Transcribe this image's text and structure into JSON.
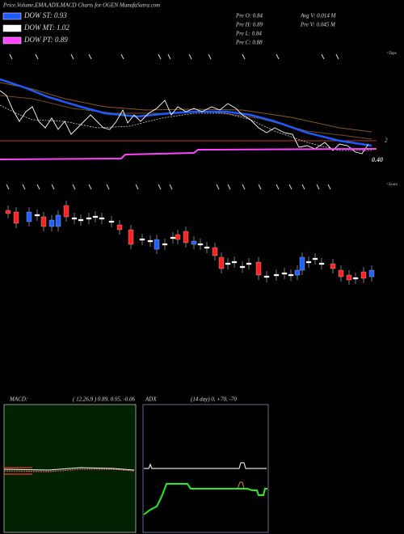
{
  "header": {
    "title": "Price,Volume,EMA,ADX,MACD Charts for OGEN MunafaSutra.com"
  },
  "legend": [
    {
      "label": "DOW ST: 0.93",
      "color": "#1e5bff"
    },
    {
      "label": "DOW MT: 1.02",
      "color": "#ffffff"
    },
    {
      "label": "DOW PT: 0.89",
      "color": "#ff44ff"
    }
  ],
  "stats": [
    "Pre  O: 0.84",
    "Pre  H: 0.89",
    "Pre  L: 0.84",
    "Pre  C: 0.88",
    "Avg V: 0.014  M",
    "Pre  V: 0.045  M"
  ],
  "labels": {
    "tops": "<Tops",
    "level": "2",
    "price": "0.40",
    "lows": "<Lows"
  },
  "macd": {
    "title": "MACD:",
    "params": "( 12,26,9 ) 0.89, 0.95, -0.06"
  },
  "adx": {
    "title": "ADX",
    "params": "(14  day) 0, +70, -70"
  }
}
